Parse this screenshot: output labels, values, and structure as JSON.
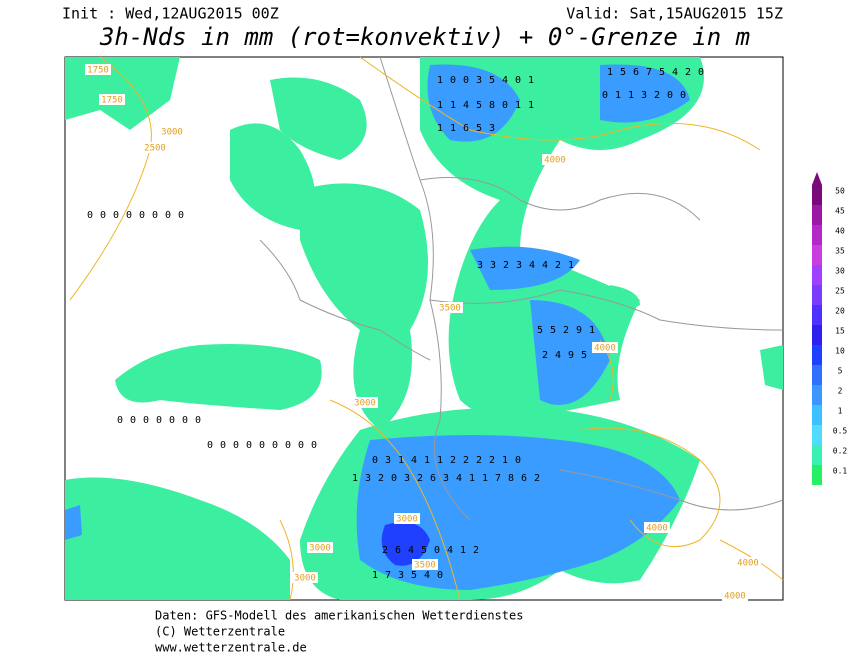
{
  "header": {
    "init": "Init : Wed,12AUG2015 00Z",
    "valid": "Valid: Sat,15AUG2015 15Z",
    "title": "3h-Nds in mm (rot=konvektiv) + 0°-Grenze in m"
  },
  "legend": {
    "levels": [
      50,
      45,
      40,
      35,
      30,
      25,
      20,
      15,
      10,
      5,
      2,
      1,
      0.5,
      0.2,
      0.1
    ],
    "colors": [
      "#7a0a7a",
      "#9a1aa6",
      "#b428c8",
      "#c83ce0",
      "#a040ff",
      "#7a3cff",
      "#5030ff",
      "#3020f0",
      "#2040ff",
      "#3070ff",
      "#3c96ff",
      "#3cc0ff",
      "#50dcff",
      "#3cf0b4",
      "#28f064"
    ]
  },
  "contour_labels": [
    1750,
    1750,
    3000,
    2500,
    3000,
    3500,
    3000,
    3000,
    3000,
    3500,
    4000,
    4000,
    4000,
    4000,
    4000
  ],
  "precip_rows": [
    [
      1,
      0,
      0,
      3,
      5,
      4,
      0,
      1
    ],
    [
      1,
      1,
      4,
      5,
      8,
      0,
      1,
      1
    ],
    [
      1,
      1,
      6,
      5,
      3
    ],
    [
      1,
      5,
      6,
      7,
      5,
      4,
      2,
      0
    ],
    [
      0,
      1,
      1,
      3,
      2,
      0,
      0
    ],
    [
      3,
      3,
      2,
      3,
      4,
      4,
      2,
      1
    ],
    [
      5,
      5,
      2,
      9,
      1
    ],
    [
      2,
      4,
      9,
      5
    ],
    [
      0,
      3,
      1,
      4,
      1,
      1,
      2,
      2,
      2,
      2,
      1,
      0
    ],
    [
      1,
      3,
      2,
      0,
      3,
      2,
      6,
      3,
      4,
      1,
      1,
      7,
      8,
      6,
      2
    ],
    [
      2,
      6,
      4,
      5,
      0,
      4,
      1,
      2
    ],
    [
      1,
      7,
      3,
      5,
      4,
      0
    ],
    [
      0,
      0,
      0,
      0,
      0,
      0,
      0,
      0
    ],
    [
      0,
      0,
      0,
      0,
      0,
      0,
      0
    ],
    [
      0,
      0,
      0,
      0,
      0,
      0,
      0,
      0,
      0
    ]
  ],
  "footer": {
    "line1": "Daten: GFS-Modell des amerikanischen Wetterdienstes",
    "line2": "(C) Wetterzentrale",
    "line3": "www.wetterzentrale.de"
  }
}
